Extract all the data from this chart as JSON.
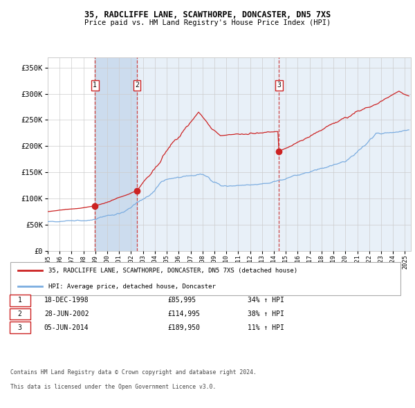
{
  "title": "35, RADCLIFFE LANE, SCAWTHORPE, DONCASTER, DN5 7XS",
  "subtitle": "Price paid vs. HM Land Registry's House Price Index (HPI)",
  "transactions": [
    {
      "num": 1,
      "date": "18-DEC-1998",
      "date_x": 1998.96,
      "price": 85995,
      "pct": "34%",
      "dir": "↑"
    },
    {
      "num": 2,
      "date": "28-JUN-2002",
      "date_x": 2002.49,
      "price": 114995,
      "pct": "38%",
      "dir": "↑"
    },
    {
      "num": 3,
      "date": "05-JUN-2014",
      "date_x": 2014.43,
      "price": 189950,
      "pct": "11%",
      "dir": "↑"
    }
  ],
  "legend_line1": "35, RADCLIFFE LANE, SCAWTHORPE, DONCASTER, DN5 7XS (detached house)",
  "legend_line2": "HPI: Average price, detached house, Doncaster",
  "footnote1": "Contains HM Land Registry data © Crown copyright and database right 2024.",
  "footnote2": "This data is licensed under the Open Government Licence v3.0.",
  "ylim": [
    0,
    370000
  ],
  "xlim": [
    1995.0,
    2025.5
  ],
  "yticks": [
    0,
    50000,
    100000,
    150000,
    200000,
    250000,
    300000,
    350000
  ],
  "hpi_color": "#7aace0",
  "price_color": "#cc2222",
  "marker_color": "#cc2222",
  "shade_color_dark": "#ccdcee",
  "shade_color_light": "#e8f0f8",
  "vline_color": "#cc4444",
  "grid_color": "#cccccc",
  "bg_color": "#ffffff",
  "box_color": "#cc2222"
}
